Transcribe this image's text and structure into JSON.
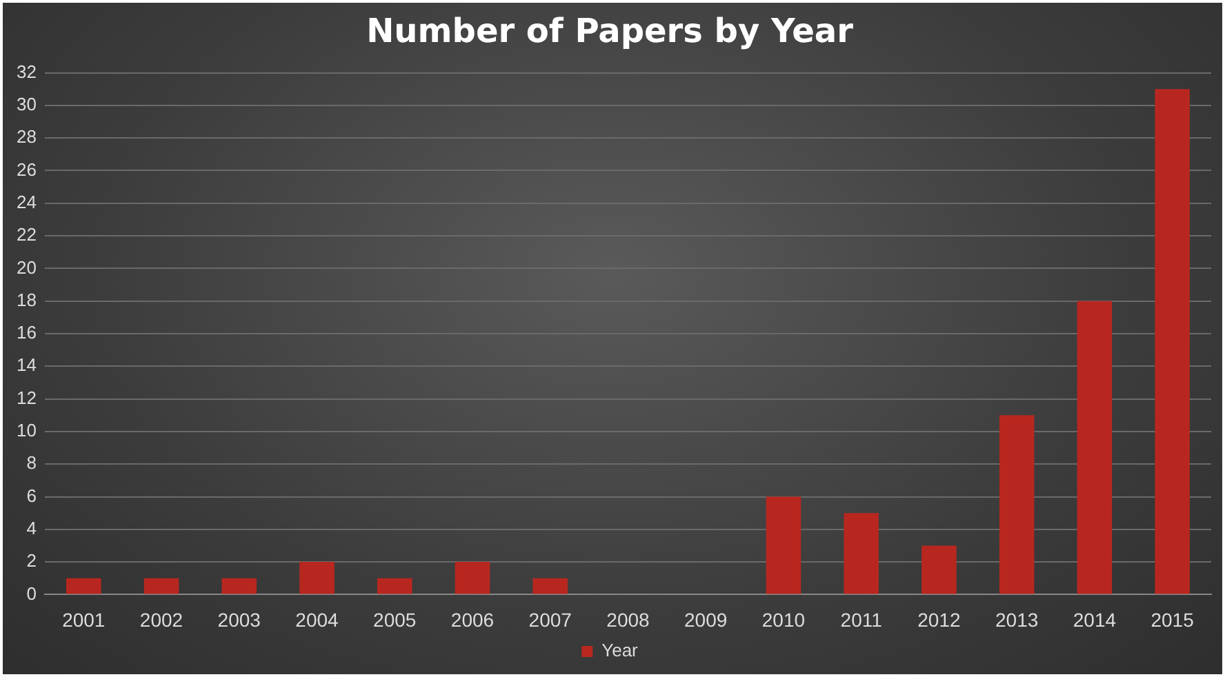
{
  "chart_data": {
    "type": "bar",
    "title": "Number of Papers by Year",
    "categories": [
      "2001",
      "2002",
      "2003",
      "2004",
      "2005",
      "2006",
      "2007",
      "2008",
      "2009",
      "2010",
      "2011",
      "2012",
      "2013",
      "2014",
      "2015"
    ],
    "series": [
      {
        "name": "Year",
        "color": "#b8271f",
        "values": [
          1,
          1,
          1,
          2,
          1,
          2,
          1,
          0,
          0,
          6,
          5,
          3,
          11,
          18,
          31
        ]
      }
    ],
    "ylim": [
      0,
      32
    ],
    "yticks": [
      0,
      2,
      4,
      6,
      8,
      10,
      12,
      14,
      16,
      18,
      20,
      22,
      24,
      26,
      28,
      30,
      32
    ],
    "grid": "y",
    "legend": "bottom"
  }
}
